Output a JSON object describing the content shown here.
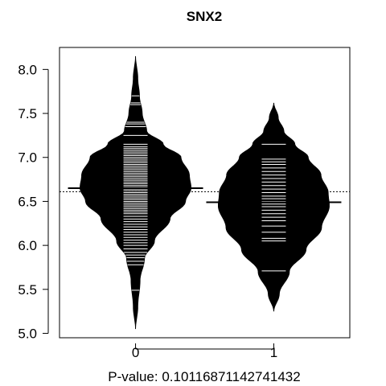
{
  "chart_data": {
    "type": "beanplot",
    "title": "SNX2",
    "xlabel": "P-value: 0.10116871142741432",
    "ylabel": "",
    "ylim": [
      4.95,
      8.25
    ],
    "y_ticks": [
      "5.0",
      "5.5",
      "6.0",
      "6.5",
      "7.0",
      "7.5",
      "8.0"
    ],
    "y_tick_values": [
      5.0,
      5.5,
      6.0,
      6.5,
      7.0,
      7.5,
      8.0
    ],
    "categories": [
      "0",
      "1"
    ],
    "overall_mean": 6.61,
    "groups": [
      {
        "label": "0",
        "mean": 6.65,
        "density_range": [
          5.05,
          8.15
        ],
        "density": [
          [
            5.05,
            0.0
          ],
          [
            5.3,
            0.04
          ],
          [
            5.6,
            0.08
          ],
          [
            5.85,
            0.16
          ],
          [
            6.05,
            0.34
          ],
          [
            6.3,
            0.62
          ],
          [
            6.5,
            0.9
          ],
          [
            6.65,
            1.0
          ],
          [
            6.8,
            0.97
          ],
          [
            7.0,
            0.82
          ],
          [
            7.15,
            0.5
          ],
          [
            7.3,
            0.2
          ],
          [
            7.5,
            0.12
          ],
          [
            7.7,
            0.07
          ],
          [
            7.9,
            0.04
          ],
          [
            8.15,
            0.0
          ]
        ],
        "points": [
          5.49,
          5.78,
          5.82,
          5.86,
          5.89,
          5.92,
          5.96,
          6.0,
          6.03,
          6.06,
          6.09,
          6.12,
          6.15,
          6.18,
          6.21,
          6.24,
          6.27,
          6.3,
          6.33,
          6.36,
          6.38,
          6.4,
          6.42,
          6.44,
          6.46,
          6.48,
          6.5,
          6.52,
          6.54,
          6.56,
          6.58,
          6.6,
          6.62,
          6.64,
          6.66,
          6.68,
          6.7,
          6.72,
          6.74,
          6.76,
          6.78,
          6.8,
          6.82,
          6.84,
          6.86,
          6.88,
          6.9,
          6.92,
          6.94,
          6.96,
          6.98,
          7.0,
          7.02,
          7.04,
          7.06,
          7.08,
          7.1,
          7.12,
          7.15,
          7.25,
          7.35,
          7.38,
          7.4,
          7.6,
          7.62,
          7.7
        ]
      },
      {
        "label": "1",
        "mean": 6.49,
        "density_range": [
          5.25,
          7.62
        ],
        "density": [
          [
            5.25,
            0.0
          ],
          [
            5.45,
            0.1
          ],
          [
            5.7,
            0.28
          ],
          [
            5.95,
            0.58
          ],
          [
            6.2,
            0.86
          ],
          [
            6.45,
            1.0
          ],
          [
            6.6,
            0.98
          ],
          [
            6.8,
            0.85
          ],
          [
            7.0,
            0.62
          ],
          [
            7.15,
            0.38
          ],
          [
            7.3,
            0.18
          ],
          [
            7.45,
            0.08
          ],
          [
            7.62,
            0.0
          ]
        ],
        "points": [
          5.71,
          6.05,
          6.08,
          6.15,
          6.22,
          6.28,
          6.32,
          6.36,
          6.4,
          6.44,
          6.47,
          6.5,
          6.53,
          6.56,
          6.6,
          6.64,
          6.68,
          6.72,
          6.76,
          6.8,
          6.84,
          6.88,
          6.92,
          6.95,
          6.98,
          7.15
        ]
      }
    ]
  }
}
